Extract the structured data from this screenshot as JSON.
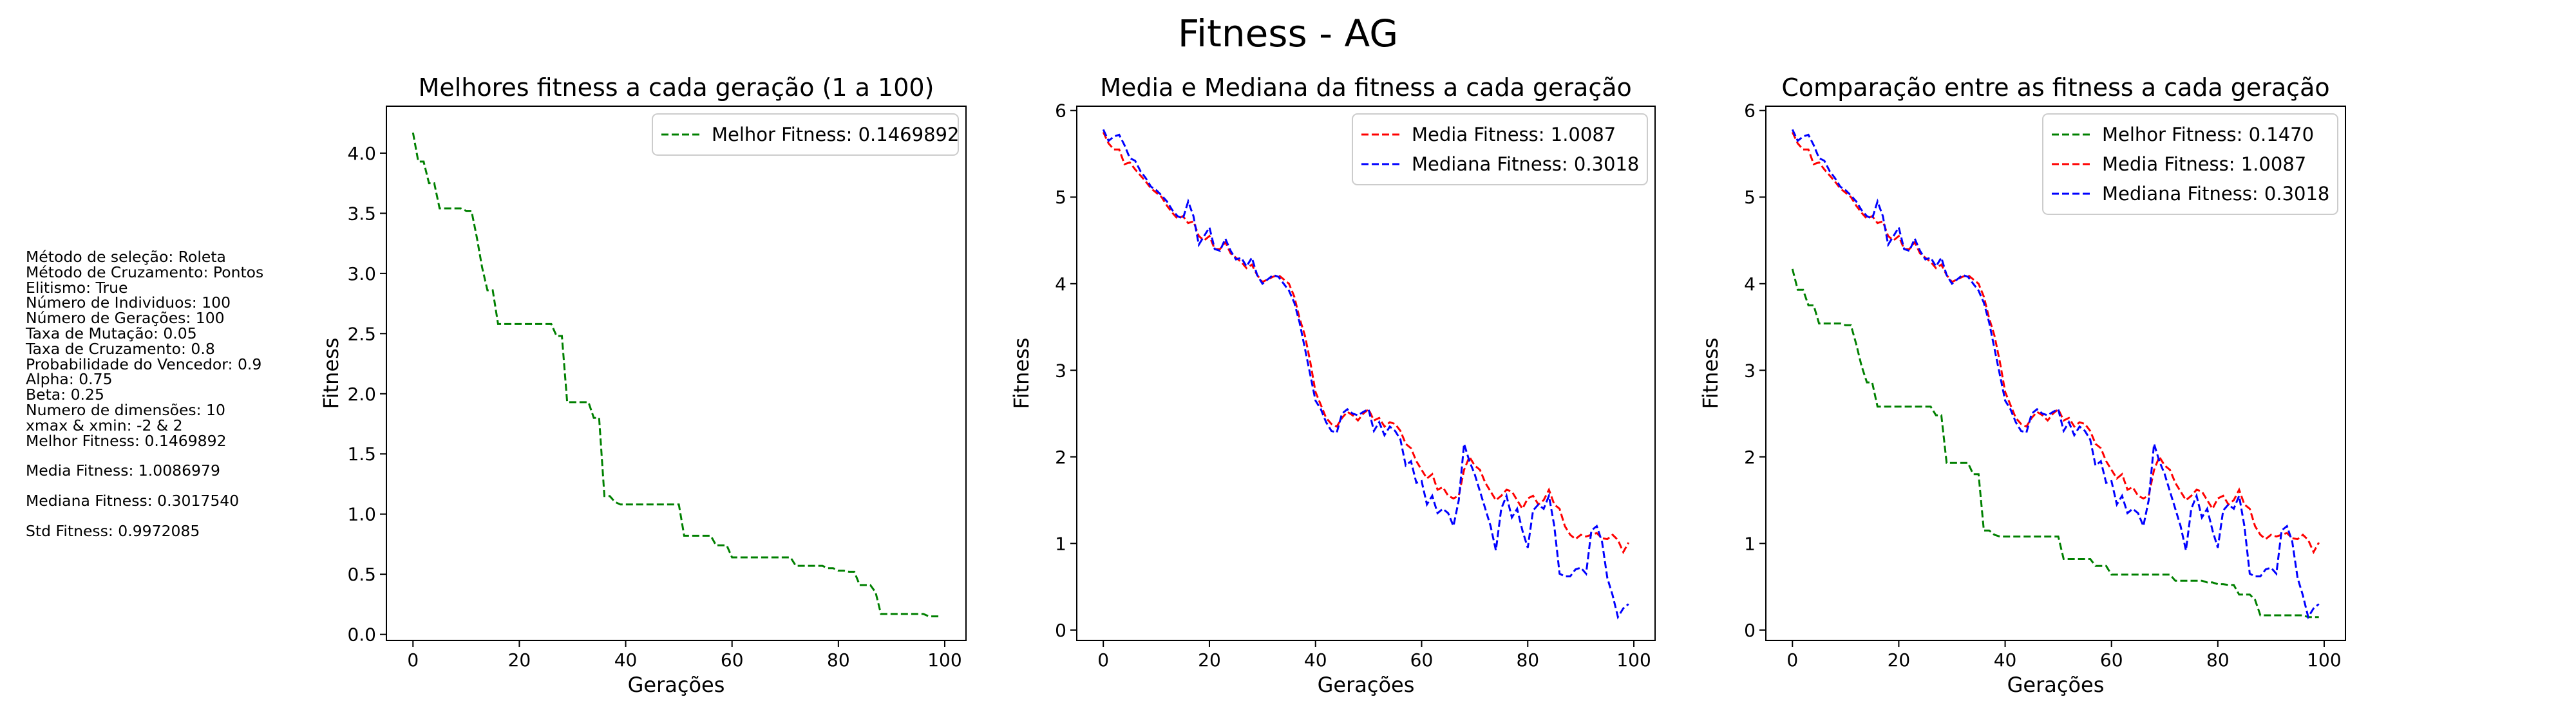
{
  "suptitle": "Fitness - AG",
  "params": [
    "Método de seleção: Roleta",
    "Método de Cruzamento: Pontos",
    "Elitismo: True",
    "Número de Individuos: 100",
    "Número de Gerações: 100",
    "Taxa de Mutação: 0.05",
    "Taxa de Cruzamento: 0.8",
    "Probabilidade do Vencedor: 0.9",
    "Alpha: 0.75",
    "Beta: 0.25",
    "Numero de dimensões: 10",
    "xmax & xmin: -2 & 2",
    "Melhor Fitness: 0.1469892",
    "",
    "Media Fitness: 1.0086979",
    "",
    "Mediana Fitness: 0.3017540",
    "",
    "Std Fitness: 0.9972085"
  ],
  "colors": {
    "best": "#008000",
    "media": "#ff0000",
    "mediana": "#0000ff",
    "axes": "#000000"
  },
  "chart_data": [
    {
      "type": "line",
      "title": "Melhores fitness a cada geração (1 a 100)",
      "xlabel": "Gerações",
      "ylabel": "Fitness",
      "xlim": [
        -5,
        104
      ],
      "ylim": [
        -0.05,
        4.39
      ],
      "xticks": [
        0,
        20,
        40,
        60,
        80,
        100
      ],
      "yticks": [
        0.0,
        0.5,
        1.0,
        1.5,
        2.0,
        2.5,
        3.0,
        3.5,
        4.0
      ],
      "ytick_labels": [
        "0.0",
        "0.5",
        "1.0",
        "1.5",
        "2.0",
        "2.5",
        "3.0",
        "3.5",
        "4.0"
      ],
      "grid": false,
      "legend": "top-right",
      "series": [
        {
          "name": "Melhor Fitness: 0.1469892",
          "key": "best"
        }
      ]
    },
    {
      "type": "line",
      "title": "Media e Mediana da fitness a cada geração",
      "xlabel": "Gerações",
      "ylabel": "Fitness",
      "xlim": [
        -5,
        104
      ],
      "ylim": [
        -0.12,
        6.05
      ],
      "xticks": [
        0,
        20,
        40,
        60,
        80,
        100
      ],
      "yticks": [
        0,
        1,
        2,
        3,
        4,
        5,
        6
      ],
      "ytick_labels": [
        "0",
        "1",
        "2",
        "3",
        "4",
        "5",
        "6"
      ],
      "grid": false,
      "legend": "top-right",
      "series": [
        {
          "name": "Media Fitness: 1.0087",
          "key": "media"
        },
        {
          "name": "Mediana Fitness: 0.3018",
          "key": "mediana"
        }
      ]
    },
    {
      "type": "line",
      "title": "Comparação entre as fitness a cada geração",
      "xlabel": "Gerações",
      "ylabel": "Fitness",
      "xlim": [
        -5,
        104
      ],
      "ylim": [
        -0.12,
        6.05
      ],
      "xticks": [
        0,
        20,
        40,
        60,
        80,
        100
      ],
      "yticks": [
        0,
        1,
        2,
        3,
        4,
        5,
        6
      ],
      "ytick_labels": [
        "0",
        "1",
        "2",
        "3",
        "4",
        "5",
        "6"
      ],
      "grid": false,
      "legend": "top-right",
      "series": [
        {
          "name": "Melhor Fitness: 0.1470",
          "key": "best"
        },
        {
          "name": "Media Fitness: 1.0087",
          "key": "media"
        },
        {
          "name": "Mediana Fitness: 0.3018",
          "key": "mediana"
        }
      ]
    }
  ],
  "series_values": {
    "best": [
      4.17,
      3.93,
      3.93,
      3.75,
      3.75,
      3.54,
      3.54,
      3.54,
      3.54,
      3.54,
      3.52,
      3.52,
      3.3,
      3.05,
      2.86,
      2.86,
      2.58,
      2.58,
      2.58,
      2.58,
      2.58,
      2.58,
      2.58,
      2.58,
      2.58,
      2.58,
      2.58,
      2.48,
      2.48,
      1.93,
      1.93,
      1.93,
      1.93,
      1.93,
      1.8,
      1.8,
      1.15,
      1.15,
      1.1,
      1.08,
      1.08,
      1.08,
      1.08,
      1.08,
      1.08,
      1.08,
      1.08,
      1.08,
      1.08,
      1.08,
      1.08,
      0.82,
      0.82,
      0.82,
      0.82,
      0.82,
      0.82,
      0.74,
      0.74,
      0.74,
      0.64,
      0.64,
      0.64,
      0.64,
      0.64,
      0.64,
      0.64,
      0.64,
      0.64,
      0.64,
      0.64,
      0.64,
      0.57,
      0.57,
      0.57,
      0.57,
      0.57,
      0.57,
      0.55,
      0.55,
      0.53,
      0.53,
      0.52,
      0.52,
      0.41,
      0.41,
      0.41,
      0.35,
      0.17,
      0.17,
      0.17,
      0.17,
      0.17,
      0.17,
      0.17,
      0.17,
      0.17,
      0.15,
      0.15,
      0.15
    ],
    "media": [
      5.75,
      5.62,
      5.55,
      5.55,
      5.38,
      5.4,
      5.32,
      5.25,
      5.18,
      5.1,
      5.05,
      5.0,
      4.9,
      4.82,
      4.75,
      4.78,
      4.7,
      4.72,
      4.55,
      4.5,
      4.55,
      4.4,
      4.4,
      4.48,
      4.35,
      4.3,
      4.25,
      4.18,
      4.22,
      4.1,
      4.02,
      4.05,
      4.08,
      4.1,
      4.05,
      4.0,
      3.85,
      3.6,
      3.4,
      3.1,
      2.75,
      2.6,
      2.45,
      2.38,
      2.35,
      2.45,
      2.52,
      2.48,
      2.42,
      2.5,
      2.55,
      2.42,
      2.45,
      2.35,
      2.4,
      2.38,
      2.3,
      2.15,
      2.1,
      1.95,
      1.85,
      1.75,
      1.8,
      1.62,
      1.65,
      1.55,
      1.52,
      1.55,
      1.85,
      2.0,
      1.9,
      1.85,
      1.7,
      1.6,
      1.5,
      1.55,
      1.62,
      1.6,
      1.5,
      1.4,
      1.52,
      1.55,
      1.45,
      1.5,
      1.62,
      1.45,
      1.4,
      1.2,
      1.1,
      1.05,
      1.1,
      1.08,
      1.1,
      1.12,
      1.06,
      1.05,
      1.1,
      1.04,
      0.9,
      1.01
    ],
    "mediana": [
      5.78,
      5.65,
      5.7,
      5.72,
      5.6,
      5.45,
      5.42,
      5.3,
      5.22,
      5.12,
      5.08,
      5.02,
      4.95,
      4.85,
      4.78,
      4.75,
      4.95,
      4.78,
      4.45,
      4.55,
      4.65,
      4.4,
      4.38,
      4.52,
      4.38,
      4.28,
      4.3,
      4.2,
      4.3,
      4.1,
      4.0,
      4.05,
      4.1,
      4.08,
      4.0,
      3.92,
      3.78,
      3.55,
      3.25,
      2.95,
      2.65,
      2.55,
      2.4,
      2.3,
      2.28,
      2.5,
      2.55,
      2.5,
      2.48,
      2.52,
      2.55,
      2.3,
      2.4,
      2.25,
      2.35,
      2.3,
      2.2,
      1.9,
      1.95,
      1.7,
      1.72,
      1.45,
      1.55,
      1.35,
      1.4,
      1.35,
      1.2,
      1.5,
      2.15,
      1.95,
      1.8,
      1.6,
      1.4,
      1.2,
      0.92,
      1.4,
      1.55,
      1.3,
      1.4,
      1.15,
      0.95,
      1.38,
      1.45,
      1.4,
      1.55,
      1.2,
      0.65,
      0.62,
      0.62,
      0.7,
      0.72,
      0.65,
      1.15,
      1.2,
      1.02,
      0.6,
      0.4,
      0.15,
      0.25,
      0.3
    ]
  }
}
